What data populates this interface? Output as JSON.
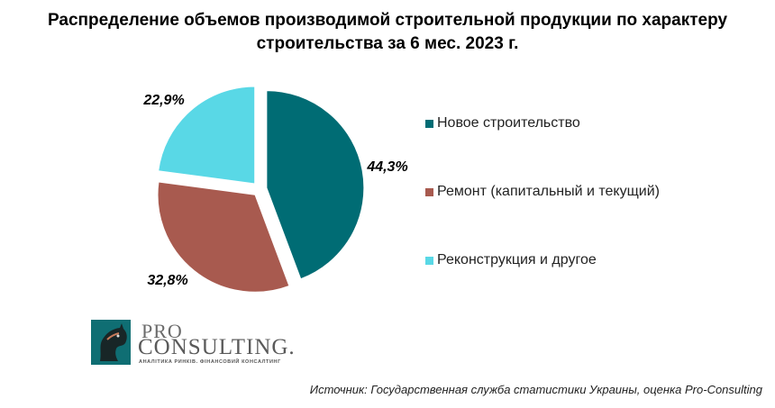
{
  "title": {
    "line1": "Распределение объемов производимой строительной продукции по характеру",
    "line2": "строительства за 6 мес. 2023 г."
  },
  "chart_data": {
    "type": "pie",
    "title": "Распределение объемов производимой строительной продукции по характеру строительства за 6 мес. 2023 г.",
    "categories": [
      "Новое строительство",
      "Ремонт (капитальный и текущий)",
      "Реконструкция и другое"
    ],
    "values": [
      44.3,
      32.8,
      22.9
    ],
    "labels": [
      "44,3%",
      "32,8%",
      "22,9%"
    ],
    "colors": [
      "#006c74",
      "#a85a4f",
      "#59d8e6"
    ],
    "exploded": true,
    "start": "12 o'clock, clockwise",
    "legend": "right"
  },
  "logo": {
    "line1": "PRO",
    "line2": "CONSULTING.",
    "tagline": "АНАЛІТИКА РИНКІВ. ФІНАНСОВИЙ КОНСАЛТИНГ",
    "mark": "horse-head-logo-icon"
  },
  "source": "Источник: Государственная служба статистики Украины, оценка Pro-Consulting"
}
